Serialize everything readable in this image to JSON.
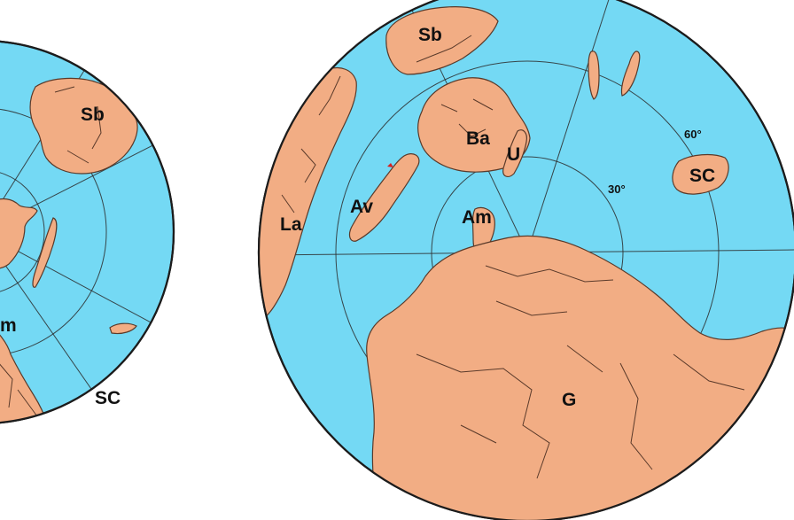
{
  "maps": {
    "left": {
      "labels": {
        "sb": "Sb",
        "am_partial": "m",
        "sc": "SC"
      }
    },
    "right": {
      "labels": {
        "sb": "Sb",
        "ba": "Ba",
        "u": "U",
        "la": "La",
        "av": "Av",
        "am": "Am",
        "sc": "SC",
        "g": "G"
      },
      "latitude_labels": {
        "lat30": "30°",
        "lat60": "60°"
      }
    }
  },
  "colors": {
    "ocean": "#74d9f4",
    "land": "#f2ad84",
    "outline": "#1c1c1c",
    "marker": "#d62020"
  }
}
